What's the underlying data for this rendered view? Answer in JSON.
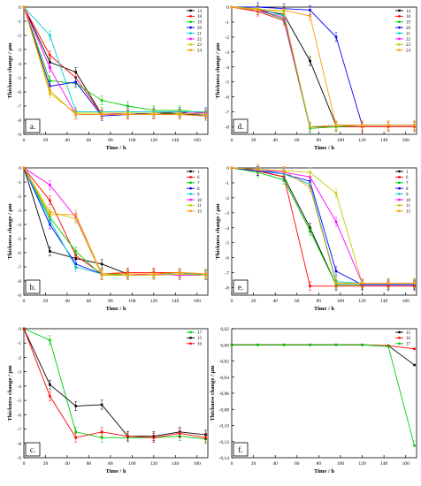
{
  "chart_data": [
    {
      "type": "line",
      "panel_label": "a.",
      "xlabel": "Time / h",
      "ylabel": "Thickness change / μm",
      "xlim": [
        0,
        170
      ],
      "ylim": [
        -9,
        0
      ],
      "xticks": [
        0,
        20,
        40,
        60,
        80,
        100,
        120,
        140,
        160
      ],
      "yticks": [
        0,
        -1,
        -2,
        -3,
        -4,
        -5,
        -6,
        -7,
        -8,
        -9
      ],
      "legend_position": "top-right",
      "x": [
        0,
        24,
        48,
        72,
        96,
        120,
        144,
        168
      ],
      "series": [
        {
          "name": "14",
          "color": "#000000",
          "values": [
            0,
            -3.9,
            -4.6,
            -7.6,
            -7.6,
            -7.6,
            -7.5,
            -7.7
          ]
        },
        {
          "name": "18",
          "color": "#ff0000",
          "values": [
            0,
            -3.4,
            -5.0,
            -7.6,
            -7.6,
            -7.6,
            -7.6,
            -7.7
          ]
        },
        {
          "name": "19",
          "color": "#00cc00",
          "values": [
            0,
            -5.2,
            -5.4,
            -6.6,
            -7.0,
            -7.3,
            -7.3,
            -7.5
          ]
        },
        {
          "name": "20",
          "color": "#0000ff",
          "values": [
            0,
            -5.6,
            -5.3,
            -7.7,
            -7.6,
            -7.5,
            -7.4,
            -7.7
          ]
        },
        {
          "name": "21",
          "color": "#00cccc",
          "values": [
            0,
            -2.0,
            -7.4,
            -7.4,
            -7.4,
            -7.4,
            -7.4,
            -7.4
          ]
        },
        {
          "name": "22",
          "color": "#ff00ff",
          "values": [
            0,
            -4.3,
            -7.6,
            -7.6,
            -7.5,
            -7.5,
            -7.5,
            -7.5
          ]
        },
        {
          "name": "23",
          "color": "#c8c800",
          "values": [
            0,
            -6.1,
            -7.5,
            -7.5,
            -7.5,
            -7.5,
            -7.5,
            -7.6
          ]
        },
        {
          "name": "24",
          "color": "#ff9900",
          "values": [
            0,
            -5.9,
            -7.6,
            -7.6,
            -7.6,
            -7.6,
            -7.6,
            -7.7
          ]
        }
      ]
    },
    {
      "type": "line",
      "panel_label": "d.",
      "xlabel": "Time / h",
      "ylabel": "Thickness change / μm",
      "xlim": [
        0,
        170
      ],
      "ylim": [
        -8.5,
        0
      ],
      "xticks": [
        0,
        20,
        40,
        60,
        80,
        100,
        120,
        140,
        160
      ],
      "yticks": [
        0,
        -1,
        -2,
        -3,
        -4,
        -5,
        -6,
        -7,
        -8
      ],
      "legend_position": "top-right",
      "x": [
        0,
        24,
        48,
        72,
        96,
        120,
        144,
        168
      ],
      "series": [
        {
          "name": "14",
          "color": "#000000",
          "values": [
            0,
            -0.2,
            -0.5,
            -3.6,
            -7.9,
            -7.9,
            -7.9,
            -7.9
          ]
        },
        {
          "name": "18",
          "color": "#ff0000",
          "values": [
            0,
            -0.3,
            -0.9,
            -8.0,
            -8.0,
            -8.0,
            -8.0,
            -8.0
          ]
        },
        {
          "name": "19",
          "color": "#00cc00",
          "values": [
            0,
            -0.2,
            -0.8,
            -8.1,
            -8.0,
            -7.9,
            -7.9,
            -7.9
          ]
        },
        {
          "name": "20",
          "color": "#0000ff",
          "values": [
            0,
            0,
            -0.1,
            -0.2,
            -2.0,
            -7.9,
            -7.9,
            -7.9
          ]
        },
        {
          "name": "21",
          "color": "#00cccc",
          "values": [
            0,
            -0.1,
            -0.6,
            -8.0,
            -7.9,
            -7.9,
            -7.9,
            -7.9
          ]
        },
        {
          "name": "22",
          "color": "#ff00ff",
          "values": [
            0,
            -0.2,
            -0.7,
            -8.0,
            -7.9,
            -7.9,
            -7.9,
            -7.9
          ]
        },
        {
          "name": "23",
          "color": "#c8c800",
          "values": [
            0,
            -0.1,
            -0.4,
            -8.0,
            -7.9,
            -7.9,
            -7.9,
            -7.9
          ]
        },
        {
          "name": "24",
          "color": "#ff9900",
          "values": [
            0,
            -0.2,
            -0.2,
            -0.6,
            -7.9,
            -7.9,
            -7.9,
            -7.9
          ]
        }
      ]
    },
    {
      "type": "line",
      "panel_label": "b.",
      "xlabel": "Time / h",
      "ylabel": "Thickness change / μm",
      "xlim": [
        0,
        170
      ],
      "ylim": [
        -9,
        0
      ],
      "xticks": [
        0,
        20,
        40,
        60,
        80,
        100,
        120,
        140,
        160
      ],
      "yticks": [
        0,
        -1,
        -2,
        -3,
        -4,
        -5,
        -6,
        -7,
        -8,
        -9
      ],
      "legend_position": "top-right",
      "x": [
        0,
        24,
        48,
        72,
        96,
        120,
        144,
        168
      ],
      "series": [
        {
          "name": "1",
          "color": "#000000",
          "values": [
            0,
            -5.9,
            -6.4,
            -6.8,
            -7.5,
            -7.5,
            -7.5,
            -7.6
          ]
        },
        {
          "name": "6",
          "color": "#ff0000",
          "values": [
            0,
            -2.3,
            -6.2,
            -7.5,
            -7.4,
            -7.4,
            -7.4,
            -7.5
          ]
        },
        {
          "name": "7",
          "color": "#00cc00",
          "values": [
            0,
            -3.5,
            -5.9,
            -7.6,
            -7.5,
            -7.5,
            -7.5,
            -7.6
          ]
        },
        {
          "name": "8",
          "color": "#0000ff",
          "values": [
            0,
            -4.0,
            -6.8,
            -7.5,
            -7.5,
            -7.5,
            -7.5,
            -7.5
          ]
        },
        {
          "name": "9",
          "color": "#00cccc",
          "values": [
            0,
            -3.7,
            -7.0,
            -7.5,
            -7.5,
            -7.5,
            -7.5,
            -7.5
          ]
        },
        {
          "name": "10",
          "color": "#ff00ff",
          "values": [
            0,
            -1.2,
            -3.5,
            -7.6,
            -7.6,
            -7.5,
            -7.6,
            -7.6
          ]
        },
        {
          "name": "11",
          "color": "#c8c800",
          "values": [
            0,
            -3.1,
            -3.6,
            -7.6,
            -7.6,
            -7.6,
            -7.5,
            -7.6
          ]
        },
        {
          "name": "13",
          "color": "#ff9900",
          "values": [
            0,
            -3.3,
            -3.3,
            -7.5,
            -7.5,
            -7.5,
            -7.4,
            -7.5
          ]
        }
      ]
    },
    {
      "type": "line",
      "panel_label": "e.",
      "xlabel": "Time / h",
      "ylabel": "Thickness change / μm",
      "xlim": [
        0,
        170
      ],
      "ylim": [
        -8.5,
        0
      ],
      "xticks": [
        0,
        20,
        40,
        60,
        80,
        100,
        120,
        140,
        160
      ],
      "yticks": [
        0,
        -1,
        -2,
        -3,
        -4,
        -5,
        -6,
        -7,
        -8
      ],
      "legend_position": "top-right",
      "x": [
        0,
        24,
        48,
        72,
        96,
        120,
        144,
        168
      ],
      "series": [
        {
          "name": "1",
          "color": "#000000",
          "values": [
            0,
            -0.2,
            -0.6,
            -4.0,
            -7.8,
            -7.8,
            -7.8,
            -7.8
          ]
        },
        {
          "name": "6",
          "color": "#ff0000",
          "values": [
            0,
            -0.2,
            -0.6,
            -7.9,
            -7.9,
            -7.9,
            -7.9,
            -7.9
          ]
        },
        {
          "name": "7",
          "color": "#00cc00",
          "values": [
            0,
            -0.3,
            -0.8,
            -4.2,
            -7.8,
            -7.8,
            -7.8,
            -7.8
          ]
        },
        {
          "name": "8",
          "color": "#0000ff",
          "values": [
            0,
            -0.2,
            -0.4,
            -0.9,
            -6.9,
            -7.8,
            -7.8,
            -7.8
          ]
        },
        {
          "name": "9",
          "color": "#00cccc",
          "values": [
            0,
            -0.1,
            -0.4,
            -1.1,
            -7.6,
            -7.7,
            -7.7,
            -7.7
          ]
        },
        {
          "name": "10",
          "color": "#ff00ff",
          "values": [
            0,
            -0.1,
            -0.3,
            -0.6,
            -3.6,
            -7.7,
            -7.7,
            -7.7
          ]
        },
        {
          "name": "11",
          "color": "#c8c800",
          "values": [
            0,
            -0.1,
            -0.2,
            -0.3,
            -1.7,
            -7.7,
            -7.7,
            -7.7
          ]
        },
        {
          "name": "13",
          "color": "#ff9900",
          "values": [
            0,
            -0.1,
            -0.2,
            -1.3,
            -7.7,
            -7.7,
            -7.7,
            -7.7
          ]
        }
      ]
    },
    {
      "type": "line",
      "panel_label": "c.",
      "xlabel": "Time / h",
      "ylabel": "Thickness change / μm",
      "xlim": [
        0,
        170
      ],
      "ylim": [
        -9,
        0
      ],
      "xticks": [
        0,
        20,
        40,
        60,
        80,
        100,
        120,
        140,
        160
      ],
      "yticks": [
        0,
        -1,
        -2,
        -3,
        -4,
        -5,
        -6,
        -7,
        -8,
        -9
      ],
      "legend_position": "top-right",
      "x": [
        0,
        24,
        48,
        72,
        96,
        120,
        144,
        168
      ],
      "series": [
        {
          "name": "17",
          "color": "#00cc00",
          "values": [
            0,
            -0.8,
            -7.2,
            -7.6,
            -7.6,
            -7.6,
            -7.5,
            -7.7
          ]
        },
        {
          "name": "15",
          "color": "#000000",
          "values": [
            0,
            -3.9,
            -5.4,
            -5.3,
            -7.5,
            -7.5,
            -7.2,
            -7.4
          ]
        },
        {
          "name": "16",
          "color": "#ff0000",
          "values": [
            0,
            -4.7,
            -7.6,
            -7.2,
            -7.5,
            -7.6,
            -7.3,
            -7.6
          ]
        }
      ]
    },
    {
      "type": "line",
      "panel_label": "f.",
      "xlabel": "Time / h",
      "ylabel": "Thickness change / μm",
      "xlim": [
        0,
        170
      ],
      "ylim": [
        -0.14,
        0.02
      ],
      "xticks": [
        0,
        20,
        40,
        60,
        80,
        100,
        120,
        140,
        160
      ],
      "yticks": [
        0.02,
        0.0,
        -0.02,
        -0.04,
        -0.06,
        -0.08,
        -0.1,
        -0.12,
        -0.14
      ],
      "ytick_labels": [
        "0,02",
        "0,00",
        "-0,02",
        "-0,04",
        "-0,06",
        "-0,08",
        "-0,10",
        "-0,12",
        "-0,14"
      ],
      "legend_position": "top-right",
      "x": [
        0,
        24,
        48,
        72,
        96,
        120,
        144,
        168
      ],
      "series": [
        {
          "name": "15",
          "color": "#000000",
          "values": [
            0,
            0,
            0,
            0,
            0,
            0,
            -0.001,
            -0.025
          ]
        },
        {
          "name": "16",
          "color": "#ff0000",
          "values": [
            0,
            0,
            0,
            0,
            0,
            0,
            -0.001,
            -0.005
          ]
        },
        {
          "name": "17",
          "color": "#00cc00",
          "values": [
            0,
            0,
            0,
            0,
            0,
            0,
            -0.002,
            -0.125
          ]
        }
      ]
    }
  ]
}
